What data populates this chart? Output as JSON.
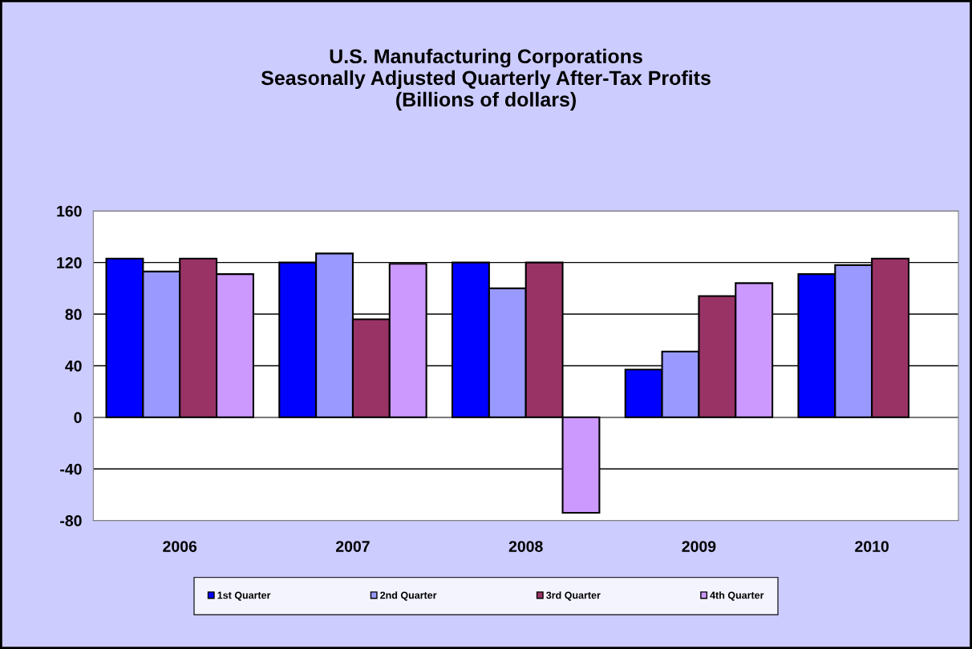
{
  "chart_data": {
    "type": "bar",
    "title": "U.S. Manufacturing Corporations\nSeasonally Adjusted Quarterly After-Tax Profits\n(Billions of dollars)",
    "categories": [
      "2006",
      "2007",
      "2008",
      "2009",
      "2010"
    ],
    "series": [
      {
        "name": "1st Quarter",
        "color": "#0000ff",
        "values": [
          123,
          120,
          120,
          37,
          111
        ]
      },
      {
        "name": "2nd Quarter",
        "color": "#9999ff",
        "values": [
          113,
          127,
          100,
          51,
          118
        ]
      },
      {
        "name": "3rd Quarter",
        "color": "#993366",
        "values": [
          123,
          76,
          120,
          94,
          123
        ]
      },
      {
        "name": "4th Quarter",
        "color": "#cc99ff",
        "values": [
          111,
          119,
          -74,
          104,
          null
        ]
      }
    ],
    "ylim": [
      -80,
      160
    ],
    "yticks": [
      -80,
      -40,
      0,
      40,
      80,
      120,
      160
    ],
    "grid": "y",
    "legend": "bottom"
  }
}
